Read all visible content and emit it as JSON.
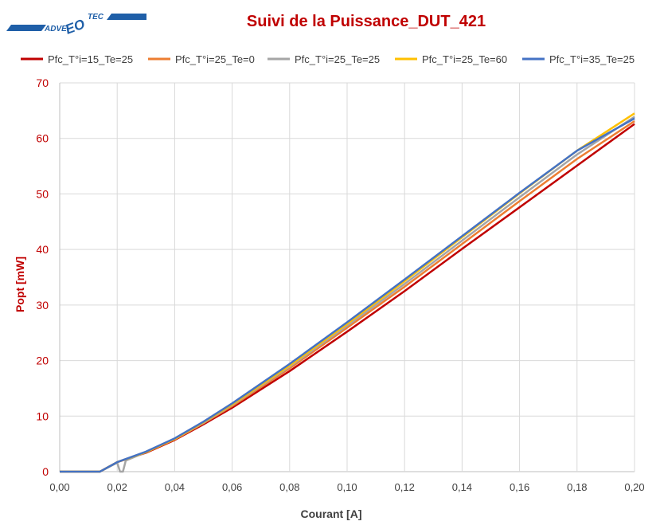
{
  "logo": {
    "text_left": "ADVE",
    "text_mid": "EO",
    "text_right": "TEC"
  },
  "colors": {
    "title": "#c00000",
    "ylabel": "#c00000",
    "logo_blue": "#1f5fa8",
    "grid": "#d9d9d9"
  },
  "chart_data": {
    "type": "line",
    "title": "Suivi de la Puissance_DUT_421",
    "xlabel": "Courant [A]",
    "ylabel": "Popt  [mW]",
    "xlim": [
      0,
      0.2
    ],
    "ylim": [
      0,
      70
    ],
    "xticks": [
      0,
      0.02,
      0.04,
      0.06,
      0.08,
      0.1,
      0.12,
      0.14,
      0.16,
      0.18,
      0.2
    ],
    "xtick_labels": [
      "0,00",
      "0,02",
      "0,04",
      "0,06",
      "0,08",
      "0,10",
      "0,12",
      "0,14",
      "0,16",
      "0,18",
      "0,20"
    ],
    "yticks": [
      0,
      10,
      20,
      30,
      40,
      50,
      60,
      70
    ],
    "ytick_labels": [
      "0",
      "10",
      "20",
      "30",
      "40",
      "50",
      "60",
      "70"
    ],
    "grid": true,
    "legend_position": "top",
    "series": [
      {
        "name": "Pfc_T°i=15_Te=25",
        "color": "#c00000",
        "x": [
          0,
          0.014,
          0.02,
          0.03,
          0.04,
          0.05,
          0.06,
          0.08,
          0.1,
          0.12,
          0.14,
          0.16,
          0.18,
          0.2
        ],
        "y": [
          0,
          0,
          1.7,
          3.4,
          5.7,
          8.5,
          11.5,
          18.1,
          25.2,
          32.5,
          40.1,
          47.6,
          55.1,
          62.6
        ]
      },
      {
        "name": "Pfc_T°i=25_Te=0",
        "color": "#ed7d31",
        "x": [
          0,
          0.014,
          0.02,
          0.03,
          0.04,
          0.05,
          0.06,
          0.08,
          0.1,
          0.12,
          0.14,
          0.16,
          0.18,
          0.2
        ],
        "y": [
          0,
          0,
          1.7,
          3.5,
          5.8,
          8.7,
          11.8,
          18.6,
          25.9,
          33.3,
          41.0,
          48.7,
          56.3,
          63.1
        ]
      },
      {
        "name": "Pfc_T°i=25_Te=25",
        "color": "#a5a5a5",
        "x": [
          0,
          0.014,
          0.02,
          0.021,
          0.0215,
          0.022,
          0.023,
          0.03,
          0.04,
          0.05,
          0.06,
          0.08,
          0.1,
          0.12,
          0.14,
          0.16,
          0.18,
          0.2
        ],
        "y": [
          0,
          0,
          1.6,
          0,
          0,
          0,
          2.0,
          3.5,
          5.9,
          8.8,
          12.0,
          18.9,
          26.3,
          33.8,
          41.6,
          49.4,
          57.1,
          63.9
        ]
      },
      {
        "name": "Pfc_T°i=25_Te=60",
        "color": "#ffc000",
        "x": [
          0,
          0.014,
          0.02,
          0.03,
          0.04,
          0.05,
          0.06,
          0.08,
          0.1,
          0.12,
          0.14,
          0.16,
          0.18,
          0.2
        ],
        "y": [
          0,
          0,
          1.7,
          3.5,
          5.9,
          8.9,
          12.1,
          19.1,
          26.6,
          34.3,
          42.2,
          50.1,
          57.8,
          64.5
        ]
      },
      {
        "name": "Pfc_T°i=35_Te=25",
        "color": "#4472c4",
        "x": [
          0,
          0.014,
          0.02,
          0.03,
          0.04,
          0.05,
          0.06,
          0.08,
          0.1,
          0.12,
          0.14,
          0.16,
          0.18,
          0.2
        ],
        "y": [
          0,
          0,
          1.7,
          3.6,
          6.0,
          9.0,
          12.3,
          19.4,
          26.9,
          34.6,
          42.4,
          50.2,
          57.8,
          63.6
        ]
      }
    ]
  }
}
